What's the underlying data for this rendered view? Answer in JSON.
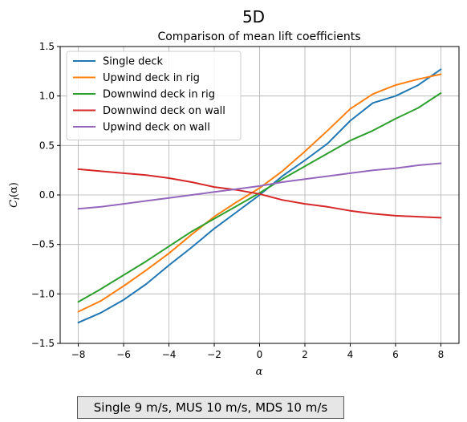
{
  "figure": {
    "suptitle": "5D",
    "footer": "Single 9 m/s, MUS 10 m/s, MDS 10 m/s"
  },
  "chart_data": {
    "type": "line",
    "title": "Comparison of mean lift coefficients",
    "xlabel": "α",
    "ylabel": "C_l(α)",
    "xlim": [
      -8.8,
      8.8
    ],
    "ylim": [
      -1.5,
      1.5
    ],
    "xticks": [
      -8,
      -6,
      -4,
      -2,
      0,
      2,
      4,
      6,
      8
    ],
    "xtick_labels": [
      "−8",
      "−6",
      "−4",
      "−2",
      "0",
      "2",
      "4",
      "6",
      "8"
    ],
    "yticks": [
      -1.5,
      -1.0,
      -0.5,
      0.0,
      0.5,
      1.0,
      1.5
    ],
    "ytick_labels": [
      "−1.5",
      "−1.0",
      "−0.5",
      "0.0",
      "0.5",
      "1.0",
      "1.5"
    ],
    "grid": true,
    "legend_position": "upper-left",
    "x": [
      -8,
      -7,
      -6,
      -5,
      -4,
      -3,
      -2,
      -1,
      0,
      1,
      2,
      3,
      4,
      5,
      6,
      7,
      8
    ],
    "series": [
      {
        "name": "Single deck",
        "color": "#1f77b4",
        "values": [
          -1.29,
          -1.19,
          -1.06,
          -0.9,
          -0.71,
          -0.53,
          -0.34,
          -0.17,
          0.0,
          0.19,
          0.35,
          0.52,
          0.75,
          0.93,
          1.0,
          1.11,
          1.27
        ]
      },
      {
        "name": "Upwind deck in rig",
        "color": "#ff7f0e",
        "values": [
          -1.18,
          -1.07,
          -0.92,
          -0.76,
          -0.59,
          -0.4,
          -0.22,
          -0.07,
          0.07,
          0.24,
          0.44,
          0.65,
          0.87,
          1.02,
          1.11,
          1.17,
          1.22
        ]
      },
      {
        "name": "Downwind deck in rig",
        "color": "#2ca02c",
        "values": [
          -1.08,
          -0.95,
          -0.81,
          -0.67,
          -0.52,
          -0.37,
          -0.24,
          -0.11,
          0.02,
          0.16,
          0.29,
          0.42,
          0.55,
          0.65,
          0.77,
          0.88,
          1.03
        ]
      },
      {
        "name": "Downwind deck on wall",
        "color": "#d62728",
        "values": [
          0.26,
          0.24,
          0.22,
          0.2,
          0.17,
          0.13,
          0.08,
          0.05,
          0.01,
          -0.05,
          -0.09,
          -0.12,
          -0.16,
          -0.19,
          -0.21,
          -0.22,
          -0.23
        ]
      },
      {
        "name": "Upwind deck on wall",
        "color": "#9467bd",
        "values": [
          -0.14,
          -0.12,
          -0.09,
          -0.06,
          -0.03,
          0.0,
          0.03,
          0.06,
          0.09,
          0.13,
          0.16,
          0.19,
          0.22,
          0.25,
          0.27,
          0.3,
          0.32
        ]
      }
    ]
  }
}
